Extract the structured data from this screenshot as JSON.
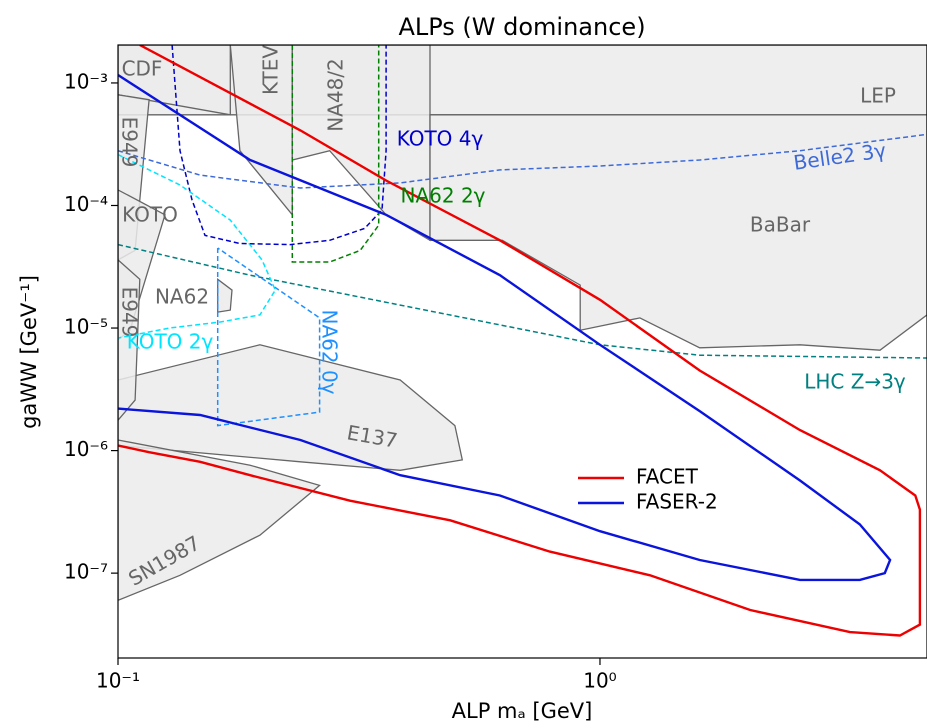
{
  "chart_data": {
    "type": "line",
    "title": "ALPs (W dominance)",
    "xlabel": "ALP mₐ [GeV]",
    "ylabel": "gaWW [GeV⁻¹]",
    "xscale": "log",
    "yscale": "log",
    "xlim": [
      0.1,
      4.77
    ],
    "ylim": [
      2.03e-08,
      0.00204
    ],
    "xticks": [
      {
        "value": 0.1,
        "label": "10⁻¹"
      },
      {
        "value": 1,
        "label": "10⁰"
      }
    ],
    "yticks": [
      {
        "value": 1e-07,
        "label": "10⁻⁷"
      },
      {
        "value": 1e-06,
        "label": "10⁻⁶"
      },
      {
        "value": 1e-05,
        "label": "10⁻⁵"
      },
      {
        "value": 0.0001,
        "label": "10⁻⁴"
      },
      {
        "value": 0.001,
        "label": "10⁻³"
      }
    ],
    "legend": "lower right",
    "series": [
      {
        "name": "FACET",
        "color": "#ee0000",
        "x": [
          0.111,
          0.239,
          0.36,
          0.62,
          1.0,
          1.61,
          2.6,
          3.81,
          4.51,
          4.61,
          4.61,
          4.19,
          3.3,
          2.05,
          1.27,
          0.787,
          0.489,
          0.303,
          0.188,
          0.148,
          0.116,
          0.1
        ],
        "y": [
          0.00204,
          0.00041,
          0.00016,
          5.2e-05,
          1.7e-05,
          4.5e-06,
          1.47e-06,
          6.9e-07,
          4.3e-07,
          3.3e-07,
          3.8e-08,
          3.1e-08,
          3.3e-08,
          5e-08,
          9.6e-08,
          1.5e-07,
          2.7e-07,
          3.9e-07,
          6.3e-07,
          8.1e-07,
          9.7e-07,
          1.1e-06
        ]
      },
      {
        "name": "FASER-2",
        "color": "#0a14dc",
        "x": [
          0.1,
          0.188,
          0.36,
          0.62,
          1.0,
          1.61,
          2.6,
          3.46,
          4.0,
          3.9,
          3.46,
          2.6,
          1.61,
          1.0,
          0.62,
          0.385,
          0.239,
          0.148,
          0.1
        ],
        "y": [
          0.00116,
          0.000235,
          8.4e-05,
          2.7e-05,
          7.3e-06,
          2.1e-06,
          5.7e-07,
          2.5e-07,
          1.28e-07,
          1e-07,
          8.8e-08,
          8.8e-08,
          1.28e-07,
          2.2e-07,
          4.3e-07,
          6.3e-07,
          1.22e-06,
          1.95e-06,
          2.2e-06
        ]
      }
    ],
    "regions_fill": "#ebebeb",
    "regions_stroke": "#666666",
    "regions": [
      {
        "name": "LEP",
        "x": [
          0.1,
          4.77,
          4.77,
          0.1
        ],
        "y": [
          0.00055,
          0.00055,
          0.00204,
          0.00204
        ]
      },
      {
        "name": "CDF",
        "x": [
          0.1,
          0.171,
          0.171,
          0.1
        ],
        "y": [
          0.00204,
          0.00204,
          0.00055,
          0.0008
        ]
      },
      {
        "name": "KTEV",
        "x": [
          0.171,
          0.23,
          0.23,
          0.179
        ],
        "y": [
          0.00204,
          0.00204,
          8.4e-05,
          0.00028
        ]
      },
      {
        "name": "NA48/2",
        "x": [
          0.23,
          0.444,
          0.444,
          0.36,
          0.275,
          0.23
        ],
        "y": [
          0.00204,
          0.00204,
          5.2e-05,
          8.4e-05,
          0.00028,
          0.000235
        ]
      },
      {
        "name": "E949",
        "x": [
          0.1,
          0.116,
          0.1085,
          0.1
        ],
        "y": [
          0.0008,
          0.00073,
          4.3e-05,
          3.6e-05
        ]
      },
      {
        "name": "KOTO",
        "x": [
          0.1,
          0.1252,
          0.1059,
          0.1
        ],
        "y": [
          0.000134,
          8.4e-05,
          9.6e-06,
          8e-06
        ]
      },
      {
        "name": "NA62",
        "x": [
          0.161,
          0.1724,
          0.171,
          0.161
        ],
        "y": [
          2.5e-05,
          2.04e-05,
          1.4e-05,
          1.35e-05
        ]
      },
      {
        "name": "BaBar",
        "x": [
          0.444,
          4.77,
          4.77,
          3.81,
          2.6,
          1.61,
          1.21,
          0.91,
          0.91,
          0.627,
          0.444
        ],
        "y": [
          0.00055,
          0.00055,
          1.28e-05,
          6.6e-06,
          7.3e-06,
          6.9e-06,
          1.21e-05,
          9.6e-06,
          2.24e-05,
          5.2e-05,
          5.2e-05
        ]
      },
      {
        "name": "E137",
        "x": [
          0.1,
          0.197,
          0.385,
          0.5,
          0.518,
          0.385,
          0.239,
          0.1
        ],
        "y": [
          3.77e-06,
          7.3e-06,
          3.77e-06,
          1.6e-06,
          8.4e-07,
          6.9e-07,
          8.1e-07,
          1.1e-06
        ]
      },
      {
        "name": "SN1987",
        "x": [
          0.1,
          0.188,
          0.262,
          0.197,
          0.1345,
          0.1
        ],
        "y": [
          1.22e-06,
          7.6e-07,
          5.2e-07,
          2.04e-07,
          9.6e-08,
          6e-08
        ]
      },
      {
        "name": "E949",
        "x": [
          0.1,
          0.111,
          0.1085,
          0.1
        ],
        "y": [
          3.6e-05,
          2.5e-05,
          2.58e-06,
          1.77e-06
        ]
      }
    ],
    "curves": [
      {
        "name": "KOTO 4γ",
        "color": "#0000cc",
        "dashed": true,
        "x": [
          0.1295,
          0.1345,
          0.1424,
          0.1515,
          0.179,
          0.2275,
          0.275,
          0.325,
          0.353,
          0.36,
          0.36
        ],
        "y": [
          0.00204,
          0.00028,
          0.000111,
          5.7e-05,
          4.9e-05,
          4.8e-05,
          5.2e-05,
          6.5e-05,
          9.2e-05,
          0.00028,
          0.00204
        ]
      },
      {
        "name": "NA62 2γ",
        "color": "#008000",
        "dashed": true,
        "x": [
          0.23,
          0.23,
          0.275,
          0.318,
          0.3475,
          0.3475
        ],
        "y": [
          0.00204,
          3.46e-05,
          3.46e-05,
          4.3e-05,
          6.9e-05,
          0.00204
        ]
      },
      {
        "name": "Belle2 3γ",
        "color": "#3d6ad8",
        "dashed": true,
        "x": [
          0.1,
          0.148,
          0.239,
          0.385,
          0.62,
          1.0,
          1.61,
          2.6,
          4.77
        ],
        "y": [
          0.00028,
          0.000177,
          0.000139,
          0.000153,
          0.000195,
          0.00021,
          0.000235,
          0.00028,
          0.00038
        ]
      },
      {
        "name": "LHC Z→3γ",
        "color": "#008080",
        "dashed": true,
        "x": [
          0.1,
          0.188,
          0.385,
          0.62,
          1.0,
          1.61,
          4.77
        ],
        "y": [
          4.8e-05,
          2.7e-05,
          1.54e-05,
          1.06e-05,
          7.3e-06,
          6e-06,
          5.7e-06
        ]
      },
      {
        "name": "KOTO 2γ",
        "color": "#00e5ff",
        "dashed": true,
        "x": [
          0.1,
          0.1345,
          0.171,
          0.199,
          0.212,
          0.197,
          0.163,
          0.128,
          0.1
        ],
        "y": [
          0.00026,
          0.000147,
          7.6e-05,
          3.6e-05,
          2.04e-05,
          1.28e-05,
          1.12e-05,
          1e-05,
          8.3e-06
        ]
      },
      {
        "name": "NA62 0γ",
        "color": "#1e90ff",
        "dashed": true,
        "x": [
          0.161,
          0.161,
          0.262,
          0.262,
          0.161
        ],
        "y": [
          4.5e-05,
          1.6e-06,
          2.06e-06,
          1.21e-05,
          4.5e-05
        ]
      }
    ]
  }
}
